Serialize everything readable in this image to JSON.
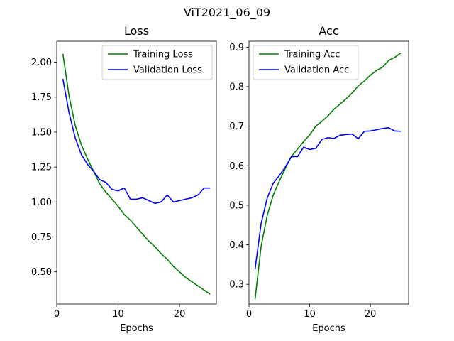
{
  "figure": {
    "title": "ViT2021_06_09"
  },
  "chart_data": [
    {
      "type": "line",
      "title": "Loss",
      "xlabel": "Epochs",
      "ylabel": "",
      "xlim": [
        0,
        26
      ],
      "ylim": [
        0.27,
        2.15
      ],
      "xticks": [
        0,
        10,
        20
      ],
      "yticks": [
        0.5,
        0.75,
        1.0,
        1.25,
        1.5,
        1.75,
        2.0
      ],
      "ytick_format": "2",
      "legend": "top-right",
      "x": [
        1,
        2,
        3,
        4,
        5,
        6,
        7,
        8,
        9,
        10,
        11,
        12,
        13,
        14,
        15,
        16,
        17,
        18,
        19,
        20,
        21,
        22,
        23,
        24,
        25
      ],
      "series": [
        {
          "name": "Training Loss",
          "color": "#008000",
          "values": [
            2.06,
            1.76,
            1.55,
            1.41,
            1.31,
            1.22,
            1.13,
            1.07,
            1.02,
            0.97,
            0.91,
            0.87,
            0.82,
            0.77,
            0.72,
            0.68,
            0.63,
            0.59,
            0.54,
            0.5,
            0.46,
            0.43,
            0.4,
            0.37,
            0.34
          ]
        },
        {
          "name": "Validation Loss",
          "color": "#0000ff",
          "values": [
            1.88,
            1.64,
            1.46,
            1.34,
            1.27,
            1.22,
            1.16,
            1.14,
            1.09,
            1.08,
            1.1,
            1.02,
            1.02,
            1.03,
            1.01,
            0.99,
            1.0,
            1.05,
            1.0,
            1.01,
            1.02,
            1.03,
            1.05,
            1.1,
            1.1
          ]
        }
      ]
    },
    {
      "type": "line",
      "title": "Acc",
      "xlabel": "Epochs",
      "ylabel": "",
      "xlim": [
        0,
        26.3
      ],
      "ylim": [
        0.25,
        0.915
      ],
      "xticks": [
        0,
        10,
        20
      ],
      "yticks": [
        0.3,
        0.4,
        0.5,
        0.6,
        0.7,
        0.8,
        0.9
      ],
      "ytick_format": "1",
      "legend": "top-left",
      "x": [
        1,
        2,
        3,
        4,
        5,
        6,
        7,
        8,
        9,
        10,
        11,
        12,
        13,
        14,
        15,
        16,
        17,
        18,
        19,
        20,
        21,
        22,
        23,
        24,
        25
      ],
      "series": [
        {
          "name": "Training Acc",
          "color": "#008000",
          "values": [
            0.262,
            0.396,
            0.474,
            0.526,
            0.561,
            0.594,
            0.624,
            0.642,
            0.661,
            0.678,
            0.7,
            0.712,
            0.726,
            0.743,
            0.756,
            0.769,
            0.784,
            0.802,
            0.814,
            0.829,
            0.841,
            0.849,
            0.866,
            0.874,
            0.885
          ]
        },
        {
          "name": "Validation Acc",
          "color": "#0000ff",
          "values": [
            0.338,
            0.454,
            0.518,
            0.556,
            0.575,
            0.597,
            0.623,
            0.623,
            0.647,
            0.641,
            0.644,
            0.666,
            0.671,
            0.669,
            0.677,
            0.679,
            0.68,
            0.668,
            0.687,
            0.688,
            0.691,
            0.694,
            0.696,
            0.688,
            0.687
          ]
        }
      ]
    }
  ]
}
